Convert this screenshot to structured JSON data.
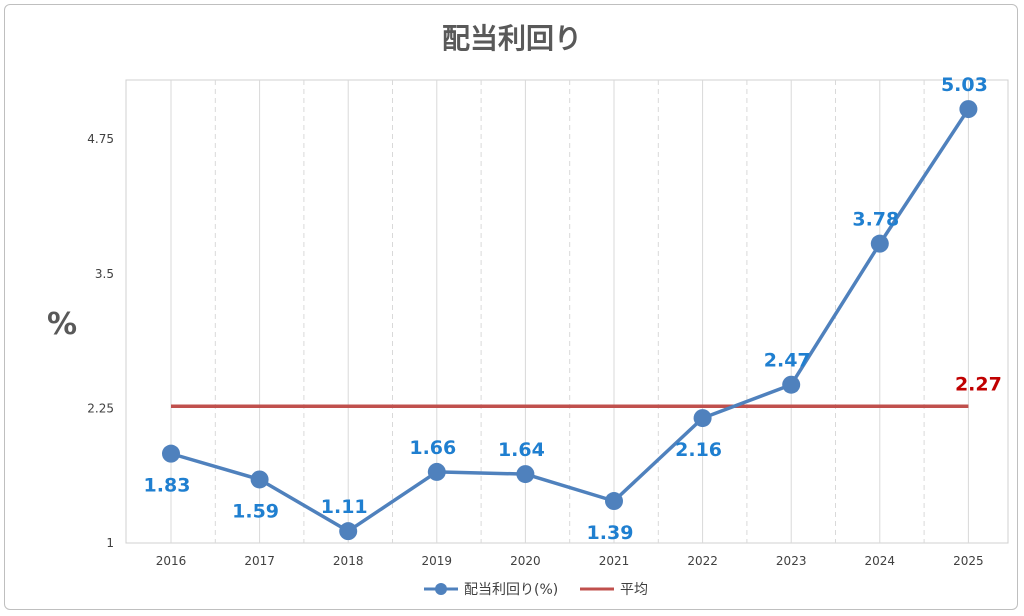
{
  "chart_data": {
    "type": "line",
    "title": "配当利回り",
    "ylabel": "%",
    "xlabel": "",
    "categories": [
      "2016",
      "2017",
      "2018",
      "2019",
      "2020",
      "2021",
      "2022",
      "2023",
      "2024",
      "2025"
    ],
    "ylim": [
      1,
      5.3
    ],
    "yticks": [
      "1",
      "2.25",
      "3.5",
      "4.75"
    ],
    "series": [
      {
        "name": "配当利回り(%)",
        "values": [
          1.83,
          1.59,
          1.11,
          1.66,
          1.64,
          1.39,
          2.16,
          2.47,
          3.78,
          5.03
        ],
        "labels": [
          "1.83",
          "1.59",
          "1.11",
          "1.66",
          "1.64",
          "1.39",
          "2.16",
          "2.47",
          "3.78",
          "5.03"
        ],
        "color": "#4f81bd"
      },
      {
        "name": "平均",
        "value": 2.27,
        "label": "2.27",
        "color": "#c0504d"
      }
    ],
    "legend": "bottom",
    "grid": "vertical-dashed"
  }
}
